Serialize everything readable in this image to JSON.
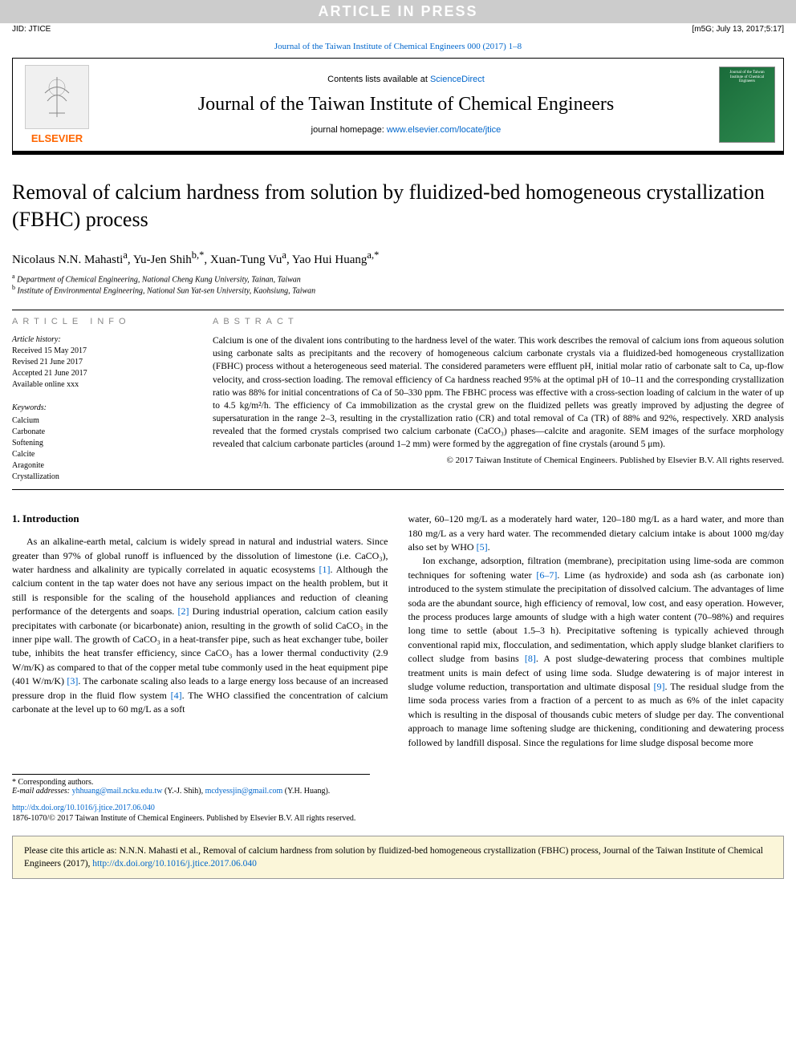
{
  "banner": {
    "text": "ARTICLE IN PRESS"
  },
  "jid_row": {
    "left": "JID: JTICE",
    "right": "[m5G; July 13, 2017;5:17]"
  },
  "journal_ref": {
    "text": "Journal of the Taiwan Institute of Chemical Engineers 000 (2017) 1–8",
    "url": "#"
  },
  "header": {
    "contents_prefix": "Contents lists available at ",
    "contents_link": "ScienceDirect",
    "journal_name": "Journal of the Taiwan Institute of Chemical Engineers",
    "homepage_prefix": "journal homepage: ",
    "homepage_link": "www.elsevier.com/locate/jtice",
    "elsevier_brand": "ELSEVIER",
    "cover_text": "Journal of the Taiwan Institute of Chemical Engineers"
  },
  "title": "Removal of calcium hardness from solution by fluidized-bed homogeneous crystallization (FBHC) process",
  "authors_html": "Nicolaus N.N. Mahasti<sup>a</sup>, Yu-Jen Shih<sup>b,*</sup>, Xuan-Tung Vu<sup>a</sup>, Yao Hui Huang<sup>a,*</sup>",
  "affiliations": [
    {
      "marker": "a",
      "text": "Department of Chemical Engineering, National Cheng Kung University, Tainan, Taiwan"
    },
    {
      "marker": "b",
      "text": "Institute of Environmental Engineering, National Sun Yat-sen University, Kaohsiung, Taiwan"
    }
  ],
  "info": {
    "heading": "ARTICLE INFO",
    "history_label": "Article history:",
    "history": [
      "Received 15 May 2017",
      "Revised 21 June 2017",
      "Accepted 21 June 2017",
      "Available online xxx"
    ],
    "keywords_label": "Keywords:",
    "keywords": [
      "Calcium",
      "Carbonate",
      "Softening",
      "Calcite",
      "Aragonite",
      "Crystallization"
    ]
  },
  "abstract": {
    "heading": "ABSTRACT",
    "text": "Calcium is one of the divalent ions contributing to the hardness level of the water. This work describes the removal of calcium ions from aqueous solution using carbonate salts as precipitants and the recovery of homogeneous calcium carbonate crystals via a fluidized-bed homogeneous crystallization (FBHC) process without a heterogeneous seed material. The considered parameters were effluent pH, initial molar ratio of carbonate salt to Ca, up-flow velocity, and cross-section loading. The removal efficiency of Ca hardness reached 95% at the optimal pH of 10–11 and the corresponding crystallization ratio was 88% for initial concentrations of Ca of 50–330 ppm. The FBHC process was effective with a cross-section loading of calcium in the water of up to 4.5 kg/m²/h. The efficiency of Ca immobilization as the crystal grew on the fluidized pellets was greatly improved by adjusting the degree of supersaturation in the range 2–3, resulting in the crystallization ratio (CR) and total removal of Ca (TR) of 88% and 92%, respectively. XRD analysis revealed that the formed crystals comprised two calcium carbonate (CaCO₃) phases—calcite and aragonite. SEM images of the surface morphology revealed that calcium carbonate particles (around 1–2 mm) were formed by the aggregation of fine crystals (around 5 μm).",
    "copyright": "© 2017 Taiwan Institute of Chemical Engineers. Published by Elsevier B.V. All rights reserved."
  },
  "intro": {
    "heading": "1. Introduction",
    "para1_pre": "As an alkaline-earth metal, calcium is widely spread in natural and industrial waters. Since greater than 97% of global runoff is influenced by the dissolution of limestone (i.e. CaCO₃), water hardness and alkalinity are typically correlated in aquatic ecosystems ",
    "ref1": "[1]",
    "para1_mid1": ". Although the calcium content in the tap water does not have any serious impact on the health problem, but it still is responsible for the scaling of the household appliances and reduction of cleaning performance of the detergents and soaps. ",
    "ref2": "[2]",
    "para1_mid2": " During industrial operation, calcium cation easily precipitates with carbonate (or bicarbonate) anion, resulting in the growth of solid CaCO₃ in the inner pipe wall. The growth of CaCO₃ in a heat-transfer pipe, such as heat exchanger tube, boiler tube, inhibits the heat transfer efficiency, since CaCO₃ has a lower thermal conductivity (2.9 W/m/K) as compared to that of the copper metal tube commonly used in the heat equipment pipe (401 W/m/K) ",
    "ref3": "[3]",
    "para1_mid3": ". The carbonate scaling also leads to a large energy loss because of an increased pressure drop in the fluid flow system ",
    "ref4": "[4]",
    "para1_post": ". The WHO classified the concentration of calcium carbonate at the level up to 60 mg/L as a soft",
    "col2_cont_pre": "water, 60–120 mg/L as a moderately hard water, 120–180 mg/L as a hard water, and more than 180 mg/L as a very hard water. The recommended dietary calcium intake is about 1000 mg/day also set by WHO ",
    "ref5": "[5]",
    "col2_cont_post": ".",
    "para2_pre": "Ion exchange, adsorption, filtration (membrane), precipitation using lime-soda are common techniques for softening water ",
    "ref67": "[6–7]",
    "para2_mid1": ". Lime (as hydroxide) and soda ash (as carbonate ion) introduced to the system stimulate the precipitation of dissolved calcium. The advantages of lime soda are the abundant source, high efficiency of removal, low cost, and easy operation. However, the process produces large amounts of sludge with a high water content (70–98%) and requires long time to settle (about 1.5–3 h). Precipitative softening is typically achieved through conventional rapid mix, flocculation, and sedimentation, which apply sludge blanket clarifiers to collect sludge from basins ",
    "ref8": "[8]",
    "para2_mid2": ". A post sludge-dewatering process that combines multiple treatment units is main defect of using lime soda. Sludge dewatering is of major interest in sludge volume reduction, transportation and ultimate disposal ",
    "ref9": "[9]",
    "para2_post": ". The residual sludge from the lime soda process varies from a fraction of a percent to as much as 6% of the inlet capacity which is resulting in the disposal of thousands cubic meters of sludge per day. The conventional approach to manage lime softening sludge are thickening, conditioning and dewatering process followed by landfill disposal. Since the regulations for lime sludge disposal become more"
  },
  "footnotes": {
    "corr_label": "* Corresponding authors.",
    "email_label": "E-mail addresses: ",
    "email1": "yhhuang@mail.ncku.edu.tw",
    "email1_who": " (Y.-J. Shih), ",
    "email2": "mcdyessjin@gmail.com",
    "email2_who": " (Y.H. Huang)."
  },
  "doi": {
    "url": "http://dx.doi.org/10.1016/j.jtice.2017.06.040",
    "copyright": "1876-1070/© 2017 Taiwan Institute of Chemical Engineers. Published by Elsevier B.V. All rights reserved."
  },
  "cite_box": {
    "text_pre": "Please cite this article as: N.N.N. Mahasti et al., Removal of calcium hardness from solution by fluidized-bed homogeneous crystallization (FBHC) process, Journal of the Taiwan Institute of Chemical Engineers (2017), ",
    "link": "http://dx.doi.org/10.1016/j.jtice.2017.06.040"
  },
  "colors": {
    "banner_bg": "#cccccc",
    "banner_fg": "#ffffff",
    "link": "#0066cc",
    "elsevier_orange": "#ff6600",
    "cite_bg": "#fbf6d9",
    "cover_bg": "#1a6b3a"
  },
  "typography": {
    "title_fontsize": 26,
    "body_fontsize": 12,
    "abstract_fontsize": 11.5,
    "footnote_fontsize": 10,
    "journal_name_fontsize": 24
  }
}
